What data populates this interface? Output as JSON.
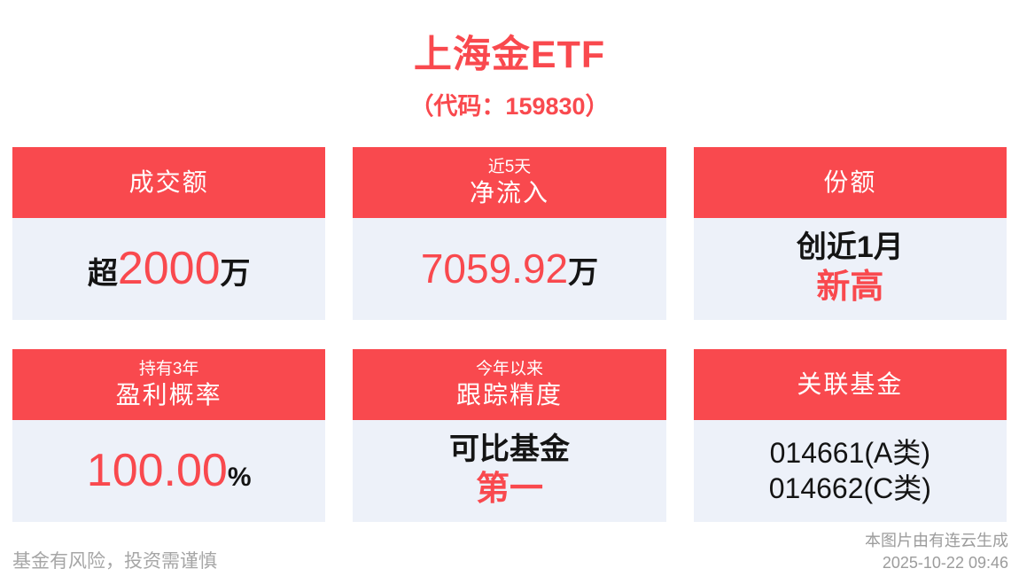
{
  "colors": {
    "accent_red": "#F9494E",
    "panel_bg": "#EDF1F9",
    "text_dark": "#141414",
    "text_gray": "#A6A6A6"
  },
  "header": {
    "title": "上海金ETF",
    "subtitle": "（代码：159830）"
  },
  "cards": [
    {
      "id": "turnover",
      "header_main": "成交额",
      "value_prefix": "超",
      "value": "2000",
      "value_suffix": "万"
    },
    {
      "id": "net-inflow-5d",
      "header_small": "近5天",
      "header_main": "净流入",
      "value": "7059.92",
      "value_suffix": "万"
    },
    {
      "id": "share",
      "header_main": "份额",
      "line1": "创近1月",
      "line2": "新高"
    },
    {
      "id": "profit-probability-3y",
      "header_small": "持有3年",
      "header_main": "盈利概率",
      "value": "100.00",
      "value_suffix": "%"
    },
    {
      "id": "tracking-accuracy-ytd",
      "header_small": "今年以来",
      "header_main": "跟踪精度",
      "line1": "可比基金",
      "line2": "第一"
    },
    {
      "id": "related-funds",
      "header_main": "关联基金",
      "line1": "014661(A类)",
      "line2": "014662(C类)"
    }
  ],
  "footer": {
    "disclaimer": "基金有风险，投资需谨慎",
    "source": "本图片由有连云生成",
    "timestamp": "2025-10-22 09:46"
  }
}
